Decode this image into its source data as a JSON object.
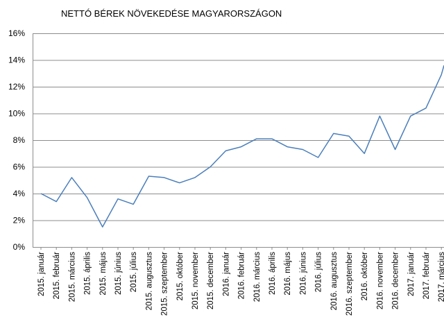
{
  "chart_data": {
    "type": "line",
    "title": "NETTÓ BÉREK NÖVEKEDÉSE  MAGYARORSZÁGON",
    "xlabel": "",
    "ylabel": "",
    "ylim": [
      0,
      16
    ],
    "y_ticks": [
      0,
      2,
      4,
      6,
      8,
      10,
      12,
      14,
      16
    ],
    "y_tick_labels": [
      "0%",
      "2%",
      "4%",
      "6%",
      "8%",
      "10%",
      "12%",
      "14%",
      "16%"
    ],
    "grid": true,
    "legend": "none",
    "line_color": "#4a7ebb",
    "categories": [
      "2015. január",
      "2015. február",
      "2015. március",
      "2015. április",
      "2015. május",
      "2015. június",
      "2015. július",
      "2015. augusztus",
      "2015. szeptember",
      "2015. október",
      "2015. november",
      "2015. december",
      "2016. január",
      "2016. február",
      "2016. március",
      "2016. április",
      "2016. május",
      "2016. június",
      "2016. július",
      "2016. augusztus",
      "2016. szeptember",
      "2016. október",
      "2016. november",
      "2016. december",
      "2017. január",
      "2017. február",
      "2017. március"
    ],
    "series": [
      {
        "values": [
          4.0,
          3.4,
          5.2,
          3.7,
          1.5,
          3.6,
          3.2,
          5.3,
          5.2,
          4.8,
          5.2,
          6.0,
          7.2,
          7.5,
          8.1,
          8.1,
          7.5,
          7.3,
          6.7,
          8.5,
          8.3,
          7.0,
          9.8,
          7.3,
          9.8,
          10.4,
          12.9
        ],
        "tail_value": 13.6
      }
    ]
  }
}
